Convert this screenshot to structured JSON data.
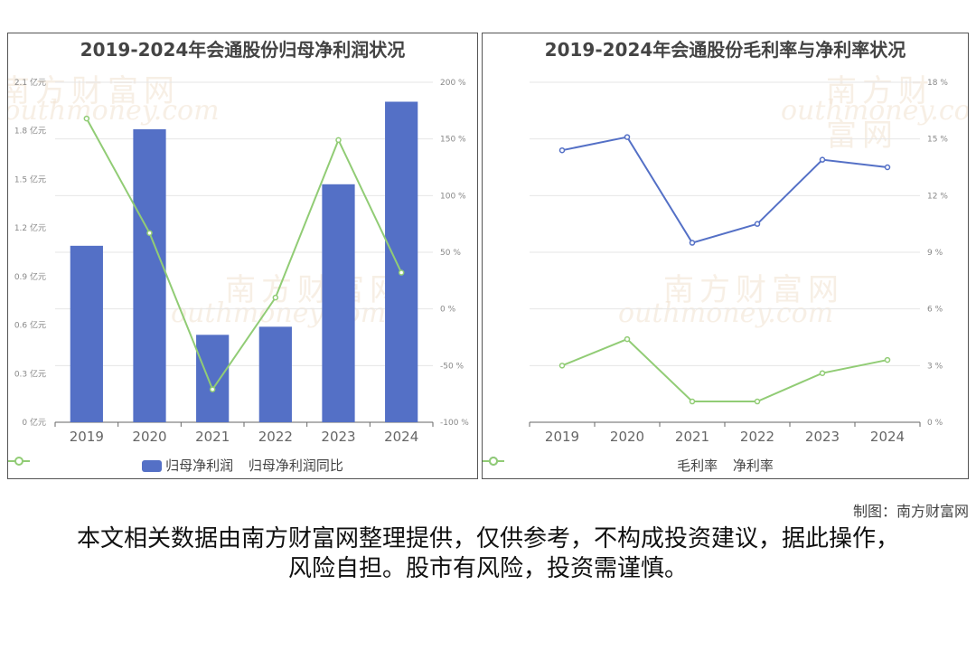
{
  "watermark": {
    "brand": "南方财富网",
    "url": "outhmoney.com",
    "url_full": "southmoney.com"
  },
  "credit": "制图：南方财富网",
  "disclaimer": "本文相关数据由南方财富网整理提供，仅供参考，不构成投资建议，据此操作，风险自担。股市有风险，投资需谨慎。",
  "colors": {
    "blue": "#5470c6",
    "green": "#91cc75"
  },
  "chart_data": [
    {
      "type": "bar",
      "title": "2019-2024年会通股份归母净利润状况",
      "categories": [
        "2019",
        "2020",
        "2021",
        "2022",
        "2023",
        "2024"
      ],
      "series": [
        {
          "name": "归母净利润",
          "type": "bar",
          "axis": "left",
          "values": [
            1.09,
            1.81,
            0.54,
            0.59,
            1.47,
            1.98
          ]
        },
        {
          "name": "归母净利润同比",
          "type": "line",
          "axis": "right",
          "values": [
            168,
            67,
            -71,
            10,
            149,
            32
          ]
        }
      ],
      "y_left": {
        "min": 0,
        "max": 2.1,
        "ticks": [
          "0 亿元",
          "0.3 亿元",
          "0.6 亿元",
          "0.9 亿元",
          "1.2 亿元",
          "1.5 亿元",
          "1.8 亿元",
          "2.1 亿元"
        ]
      },
      "y_right": {
        "min": -100,
        "max": 200,
        "ticks": [
          "-100 %",
          "-50 %",
          "0 %",
          "50 %",
          "100 %",
          "150 %",
          "200 %"
        ]
      },
      "legend": "bottom-center",
      "grid": true
    },
    {
      "type": "line",
      "title": "2019-2024年会通股份毛利率与净利率状况",
      "categories": [
        "2019",
        "2020",
        "2021",
        "2022",
        "2023",
        "2024"
      ],
      "series": [
        {
          "name": "毛利率",
          "values": [
            14.4,
            15.1,
            9.5,
            10.5,
            13.9,
            13.5
          ]
        },
        {
          "name": "净利率",
          "values": [
            3.0,
            4.4,
            1.1,
            1.1,
            2.6,
            3.3
          ]
        }
      ],
      "y_right": {
        "min": 0,
        "max": 18,
        "ticks": [
          "0 %",
          "3 %",
          "6 %",
          "9 %",
          "12 %",
          "15 %",
          "18 %"
        ]
      },
      "legend": "bottom-center",
      "grid": true
    }
  ]
}
